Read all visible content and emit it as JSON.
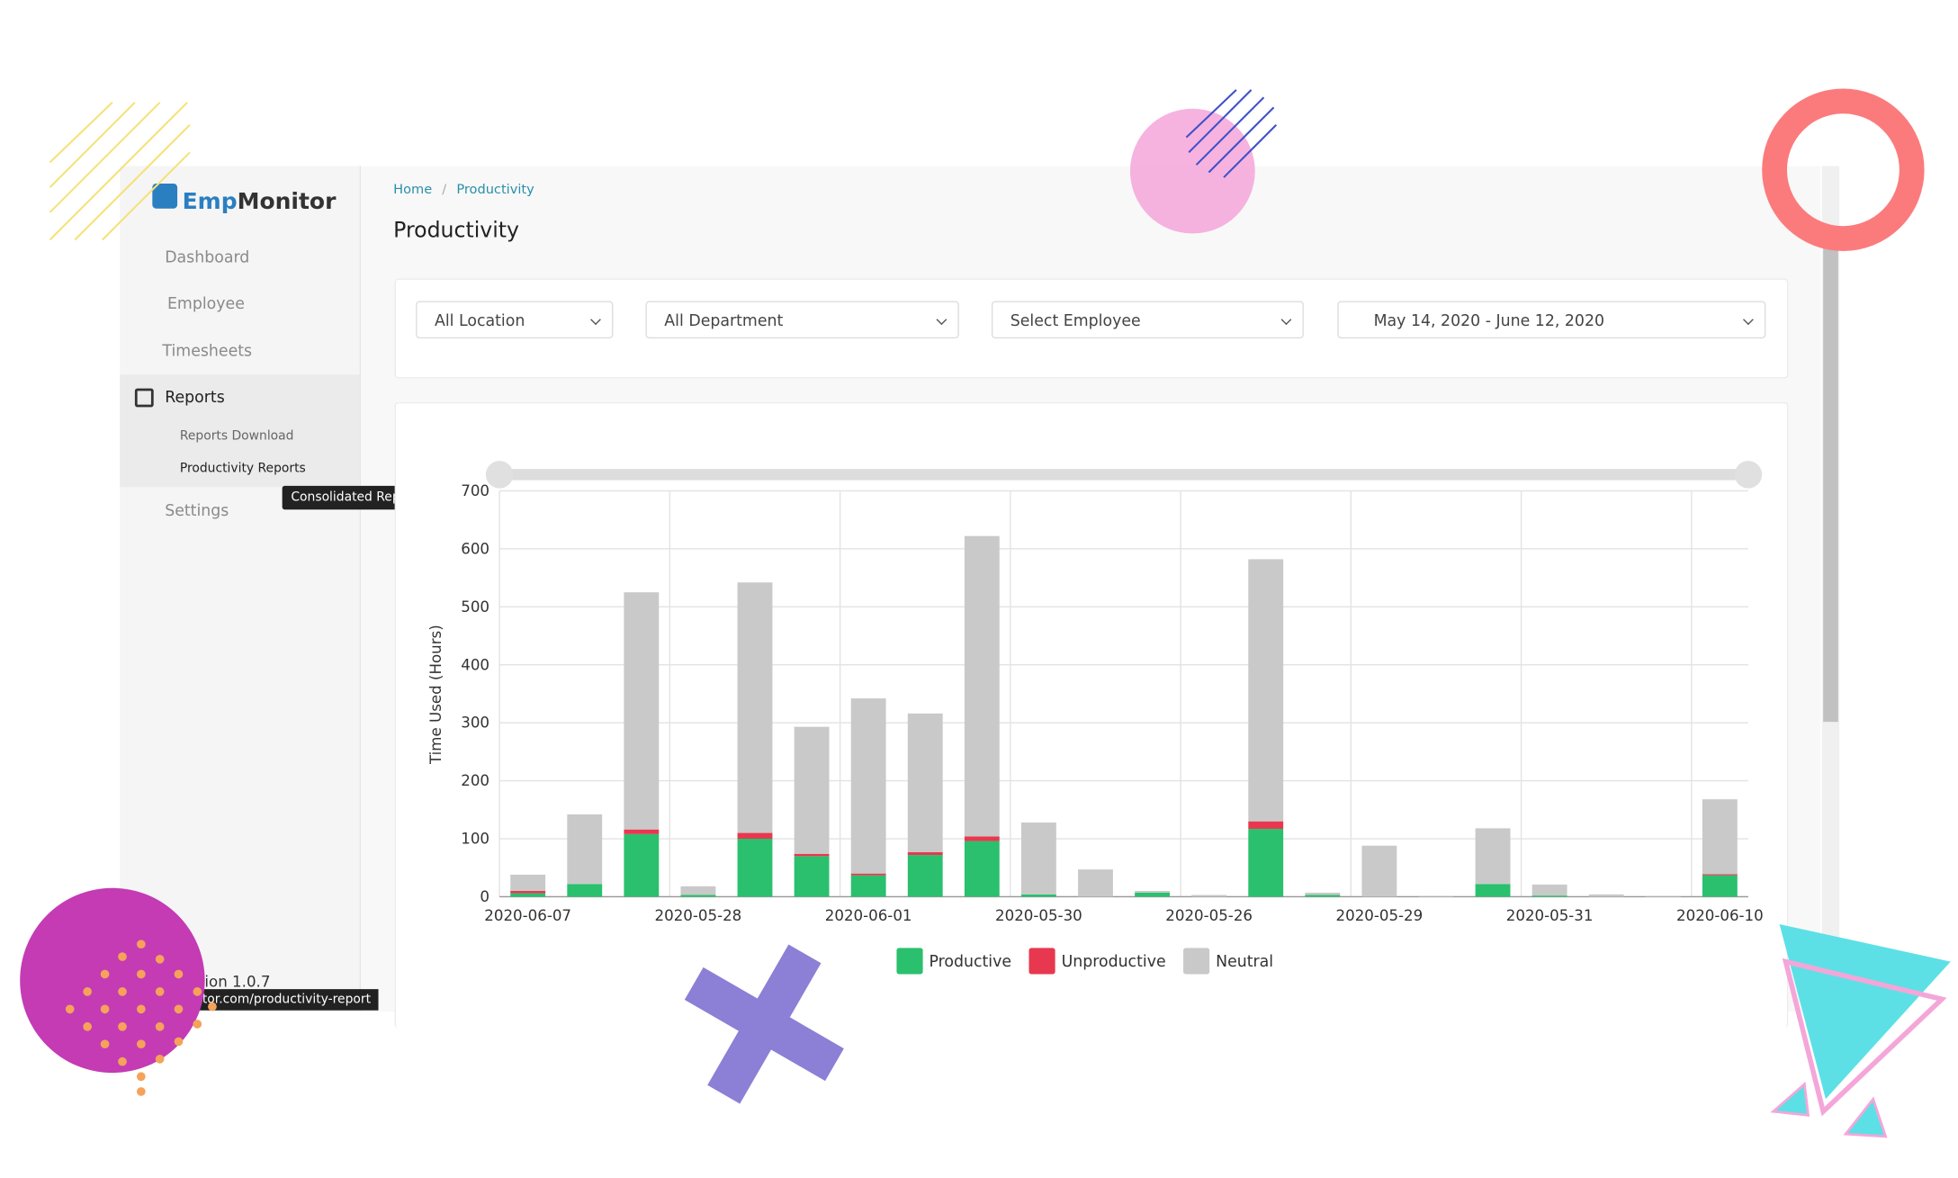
{
  "sidebar": {
    "logo": [
      "Emp",
      "Monitor"
    ],
    "nav": [
      "Dashboard",
      "Employee",
      "Timesheets",
      "Reports"
    ],
    "submenu": [
      "Reports Download",
      "Productivity Reports"
    ],
    "settings": "Settings",
    "tooltip": "Consolidated Reports",
    "version": "Version 1.0.7",
    "url_tooltip": "tor.com/productivity-report"
  },
  "breadcrumb": [
    "Home",
    "Productivity"
  ],
  "header": {
    "title": "Productivity"
  },
  "filters": [
    "All Location",
    "All Department",
    "Select Employee",
    "May 14, 2020 - June 12, 2020"
  ],
  "chart_data": {
    "type": "stacked-bar",
    "y_label": "Time Used (Hours)",
    "categories": [
      "2020-06-07",
      null,
      null,
      "2020-05-28",
      null,
      null,
      "2020-06-01",
      null,
      null,
      "2020-05-30",
      null,
      null,
      "2020-05-26",
      null,
      null,
      "2020-05-29",
      null,
      null,
      "2020-05-31",
      null,
      null,
      "2020-06-10"
    ],
    "series": [
      {
        "name": "Productive",
        "color": "#2ac06e",
        "values": [
          6,
          22,
          108,
          3,
          100,
          70,
          37,
          72,
          96,
          4,
          0,
          7,
          0,
          117,
          3,
          0,
          0,
          22,
          2,
          0,
          0,
          37
        ]
      },
      {
        "name": "Unproductive",
        "color": "#e8384f",
        "values": [
          4,
          0,
          8,
          0,
          10,
          4,
          3,
          5,
          8,
          0,
          0,
          0,
          0,
          13,
          0,
          0,
          0,
          0,
          0,
          0,
          0,
          2
        ]
      },
      {
        "name": "Neutral",
        "color": "#c9c9c9",
        "values": [
          28,
          120,
          409,
          15,
          432,
          219,
          302,
          239,
          518,
          124,
          47,
          3,
          3,
          452,
          4,
          88,
          1,
          96,
          19,
          4,
          1,
          129
        ]
      }
    ],
    "ylim": [
      0,
      700
    ],
    "yticks": [
      0,
      100,
      200,
      300,
      400,
      500,
      600,
      700
    ],
    "grid": true
  }
}
